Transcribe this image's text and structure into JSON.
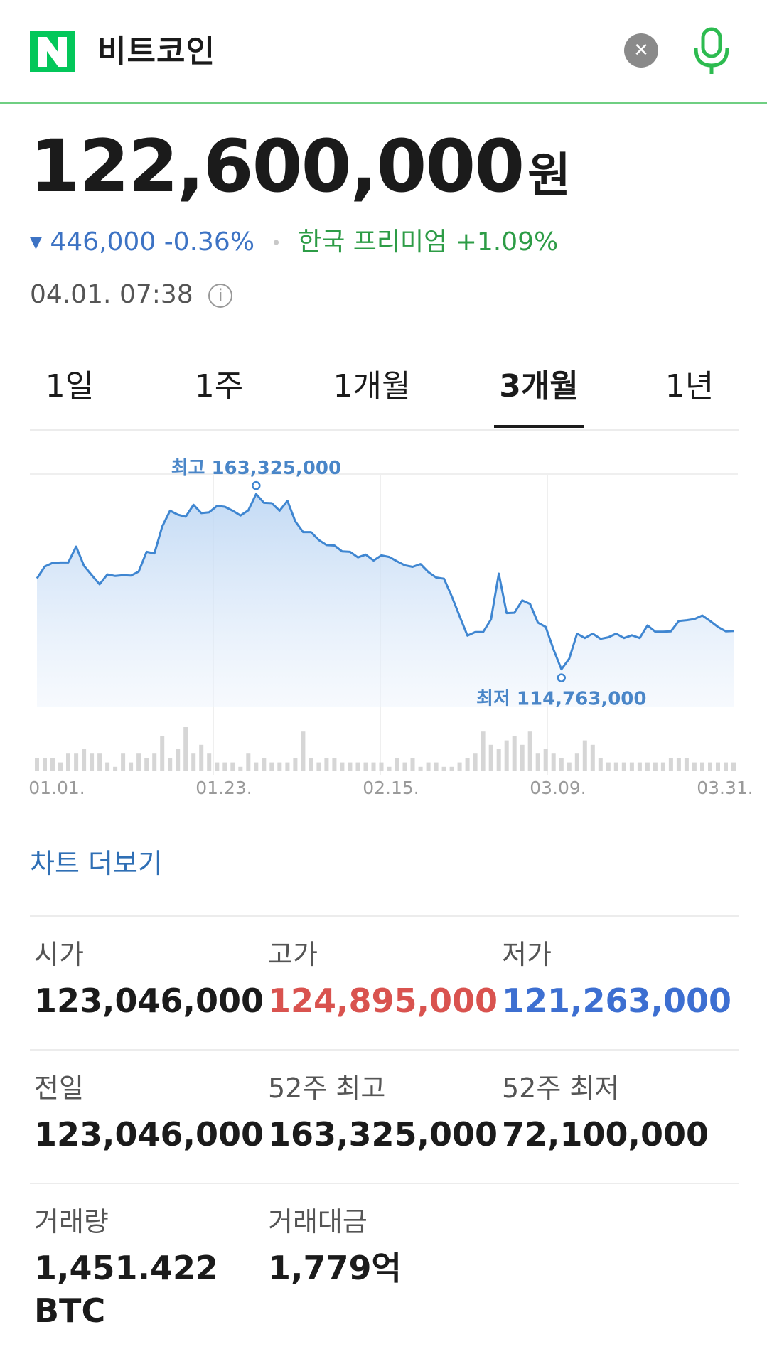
{
  "search": {
    "query": "비트코인",
    "clear_icon": "close-icon",
    "voice_icon": "microphone-icon"
  },
  "colors": {
    "brand_green": "#03c75a",
    "down_blue": "#3d73c4",
    "premium_green": "#2d9c46",
    "high_red": "#d9534f",
    "low_blue": "#3d6fd1",
    "chart_line": "#3f86d1"
  },
  "price": {
    "value": "122,600,000",
    "unit": "원",
    "change_arrow": "▼",
    "change": "446,000 -0.36%",
    "premium": "한국 프리미엄 +1.09%",
    "timestamp": "04.01. 07:38",
    "info_icon": "info-icon"
  },
  "tabs": [
    {
      "label": "1일",
      "active": false
    },
    {
      "label": "1주",
      "active": false
    },
    {
      "label": "1개월",
      "active": false
    },
    {
      "label": "3개월",
      "active": true
    },
    {
      "label": "1년",
      "active": false
    }
  ],
  "chart_data": {
    "type": "line",
    "x_ticks": [
      "01.01.",
      "01.23.",
      "02.15.",
      "03.09.",
      "03.31."
    ],
    "annotations": {
      "high_label": "최고 163,325,000",
      "low_label": "최저 114,763,000"
    },
    "high": 163325000,
    "low": 114763000,
    "ylim": [
      113000000,
      168000000
    ],
    "values": [
      142000000,
      145000000,
      145900000,
      146000000,
      146000000,
      150000000,
      145200000,
      142800000,
      140500000,
      143000000,
      142600000,
      142800000,
      142700000,
      143700000,
      148700000,
      148300000,
      155100000,
      159100000,
      158100000,
      157600000,
      160600000,
      158500000,
      158700000,
      160300000,
      160100000,
      159100000,
      157900000,
      159200000,
      163300000,
      161100000,
      161000000,
      159100000,
      161600000,
      156400000,
      153700000,
      153700000,
      151700000,
      150400000,
      150300000,
      148800000,
      148700000,
      147300000,
      148000000,
      146500000,
      147800000,
      147400000,
      146300000,
      145300000,
      144900000,
      145600000,
      143600000,
      142200000,
      141900000,
      137400000,
      132400000,
      127500000,
      128400000,
      128400000,
      131600000,
      143200000,
      133200000,
      133300000,
      136400000,
      135500000,
      130800000,
      129700000,
      124000000,
      119000000,
      121700000,
      128000000,
      126900000,
      128000000,
      126700000,
      127100000,
      128000000,
      126900000,
      127600000,
      126900000,
      130100000,
      128500000,
      128500000,
      128600000,
      131200000,
      131400000,
      131700000,
      132600000,
      131200000,
      129700000,
      128600000,
      128700000
    ],
    "volume": [
      3,
      3,
      3,
      2,
      4,
      4,
      5,
      4,
      4,
      2,
      1,
      4,
      2,
      4,
      3,
      4,
      8,
      3,
      5,
      10,
      4,
      6,
      4,
      2,
      2,
      2,
      1,
      4,
      2,
      3,
      2,
      2,
      2,
      3,
      9,
      3,
      2,
      3,
      3,
      2,
      2,
      2,
      2,
      2,
      2,
      1,
      3,
      2,
      3,
      1,
      2,
      2,
      1,
      1,
      2,
      3,
      4,
      9,
      6,
      5,
      7,
      8,
      6,
      9,
      4,
      5,
      4,
      3,
      2,
      4,
      7,
      6,
      3,
      2,
      2,
      2,
      2,
      2,
      2,
      2,
      2,
      3,
      3,
      3,
      2,
      2,
      2,
      2,
      2,
      2
    ]
  },
  "chart_more_link": "차트 더보기",
  "stats": [
    {
      "label": "시가",
      "value": "123,046,000",
      "tone": "normal"
    },
    {
      "label": "고가",
      "value": "124,895,000",
      "tone": "red"
    },
    {
      "label": "저가",
      "value": "121,263,000",
      "tone": "blue"
    },
    {
      "label": "전일",
      "value": "123,046,000",
      "tone": "normal"
    },
    {
      "label": "52주 최고",
      "value": "163,325,000",
      "tone": "normal"
    },
    {
      "label": "52주 최저",
      "value": "72,100,000",
      "tone": "normal"
    },
    {
      "label": "거래량",
      "value": "1,451.422 BTC",
      "tone": "normal"
    },
    {
      "label": "거래대금",
      "value": "1,779억",
      "tone": "normal"
    }
  ]
}
